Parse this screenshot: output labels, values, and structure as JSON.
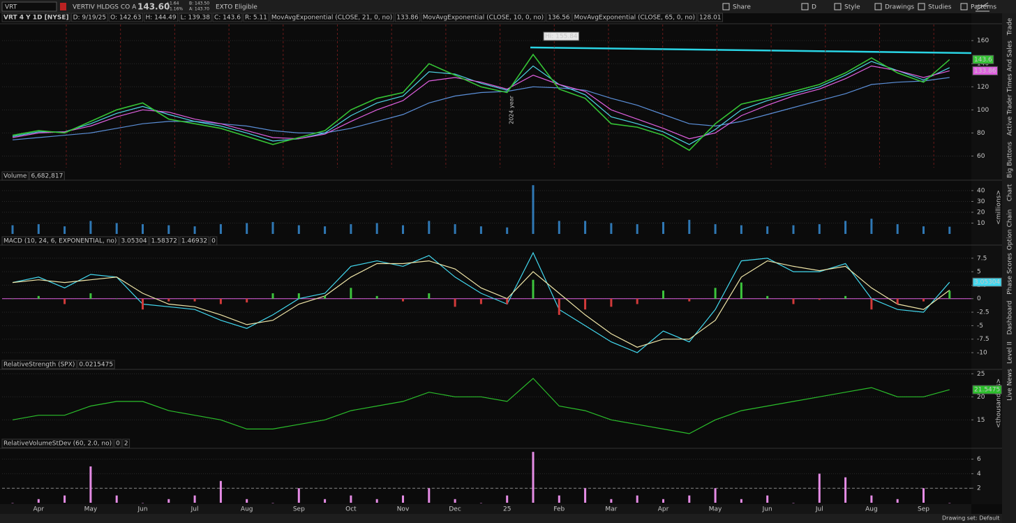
{
  "toolbar": {
    "symbol": "VRT",
    "company": "VERTIV HLDGS CO A",
    "last": "143.60",
    "change": "+1.64",
    "change_pct": "+1.16%",
    "bid": "B: 143.50",
    "ask": "A: 143.70",
    "badge": "EXTO Eligible",
    "buttons": [
      "Share",
      "D",
      "Style",
      "Drawings",
      "Studies",
      "Patterns"
    ]
  },
  "side_tabs": [
    "Trade",
    "Times And Sales",
    "Active Trader",
    "Big Buttons",
    "Chart",
    "Option Chain",
    "Phase Scores",
    "Dashboard",
    "Level II",
    "Live News"
  ],
  "status": "Drawing set: Default",
  "chart_data": [
    {
      "type": "line",
      "readouts": [
        "D: 9/19/25",
        "O: 142.63",
        "H: 144.49",
        "L: 139.38",
        "C: 143.6",
        "R: 5.11"
      ],
      "annotation": "Hi: 155.84",
      "year_label": "2024 year",
      "grid": true,
      "categories": [
        null,
        "Apr",
        null,
        "May",
        null,
        "Jun",
        null,
        "Jul",
        null,
        "Aug",
        null,
        "Sep",
        null,
        "Oct",
        null,
        "Nov",
        null,
        "Dec",
        null,
        "25",
        null,
        "Feb",
        null,
        "Mar",
        null,
        "Apr",
        null,
        "May",
        null,
        "Jun",
        null,
        "Jul",
        null,
        "Aug",
        null,
        "Sep",
        null
      ],
      "ylim": [
        50,
        174
      ],
      "yticks": [
        60,
        80,
        100,
        120,
        140,
        160
      ],
      "series": [
        {
          "name": "VRT 4 Y 1D [NYSE]",
          "color": "#35c435",
          "badge": true,
          "values": [
            78,
            82,
            80,
            90,
            100,
            106,
            92,
            88,
            84,
            77,
            70,
            76,
            82,
            100,
            110,
            115,
            140,
            130,
            120,
            115,
            148,
            118,
            110,
            88,
            85,
            78,
            65,
            88,
            105,
            110,
            116,
            122,
            132,
            145,
            132,
            124,
            143.6
          ]
        },
        {
          "name": "MovAvgExponential (CLOSE, 21, 0, no)",
          "color": "#e060e0",
          "badge": true,
          "values": [
            76,
            80,
            81,
            86,
            94,
            100,
            98,
            92,
            88,
            82,
            76,
            75,
            79,
            90,
            100,
            108,
            125,
            128,
            124,
            118,
            130,
            122,
            116,
            100,
            92,
            84,
            75,
            80,
            95,
            104,
            112,
            118,
            127,
            138,
            134,
            128,
            133.86
          ]
        },
        {
          "name": "MovAvgExponential (CLOSE, 10, 0, no)",
          "color": "#4fd6e6",
          "badge": false,
          "values": [
            77,
            81,
            81,
            88,
            97,
            103,
            96,
            90,
            86,
            80,
            73,
            75,
            80,
            95,
            106,
            112,
            133,
            131,
            123,
            117,
            138,
            122,
            113,
            94,
            88,
            81,
            70,
            83,
            100,
            108,
            114,
            120,
            130,
            142,
            134,
            126,
            136.56
          ]
        },
        {
          "name": "MovAvgExponential (CLOSE, 65, 0, no)",
          "color": "#5b8fd8",
          "badge": false,
          "values": [
            74,
            76,
            78,
            80,
            84,
            88,
            90,
            90,
            88,
            86,
            82,
            80,
            80,
            84,
            90,
            96,
            106,
            112,
            115,
            116,
            120,
            119,
            117,
            110,
            104,
            96,
            88,
            86,
            90,
            96,
            102,
            108,
            114,
            122,
            124,
            125,
            128.01
          ]
        }
      ]
    },
    {
      "type": "bar",
      "title": "Volume",
      "readout": "6,682,817",
      "unit": "<millions>",
      "grid": true,
      "ylim": [
        0,
        49
      ],
      "yticks": [
        10,
        20,
        30,
        40
      ],
      "series": [
        {
          "color": "#2f78b5",
          "values": [
            8,
            9,
            7,
            12,
            10,
            9,
            8,
            7,
            9,
            10,
            11,
            8,
            7,
            9,
            10,
            8,
            12,
            9,
            7,
            6,
            45,
            12,
            12,
            10,
            9,
            11,
            13,
            9,
            8,
            7,
            8,
            9,
            12,
            14,
            9,
            7,
            6.682817
          ]
        }
      ]
    },
    {
      "type": "macd",
      "title": "MACD (10, 24, 6, EXPONENTIAL, no)",
      "zero_line": 0,
      "grid": true,
      "ylim": [
        -10.9,
        9.8
      ],
      "yticks": [
        -10,
        -7.5,
        -5,
        -2.5,
        0,
        2.5,
        5,
        7.5
      ],
      "series": [
        {
          "color": "#42d9f0",
          "badge": true,
          "values": [
            3,
            4,
            2,
            4.5,
            4,
            -1,
            -1.5,
            -2,
            -4,
            -5.5,
            -3,
            0,
            1,
            6,
            7,
            6,
            8,
            4,
            1,
            -1,
            8.5,
            -2,
            -5,
            -8,
            -10,
            -6,
            -8,
            -2,
            7,
            7.5,
            5,
            5,
            6.5,
            0,
            -2,
            -2.5,
            3.05304
          ]
        },
        {
          "color": "#f0e6a8",
          "badge": false,
          "values": [
            3,
            3.5,
            3,
            3.5,
            4,
            1,
            -1,
            -1.5,
            -3,
            -4.8,
            -4,
            -1,
            0.5,
            4,
            6.5,
            6.5,
            7,
            5.5,
            2,
            0,
            5,
            1,
            -3,
            -6.5,
            -9,
            -7.5,
            -7.5,
            -4,
            4,
            7,
            6,
            5.2,
            6,
            2,
            -1,
            -2,
            1.58372
          ]
        },
        {
          "color": "#3cc43c",
          "negative_color": "#d23a3a",
          "badge": false,
          "histogram": true,
          "values": [
            0,
            0.5,
            -1,
            1,
            0,
            -2,
            -0.5,
            -0.5,
            -1,
            -0.7,
            1,
            1,
            0.5,
            2,
            0.5,
            -0.5,
            1,
            -1.5,
            -1,
            -1,
            3.5,
            -3,
            -2,
            -1.5,
            -1,
            1.5,
            -0.5,
            2,
            3,
            0.5,
            -1,
            -0.2,
            0.5,
            -2,
            -1,
            -0.5,
            1.46932
          ]
        }
      ]
    },
    {
      "type": "line",
      "title": "RelativeStrength (SPX)",
      "readout": "0.0215475",
      "unit": "<thousandths>",
      "grid": true,
      "ylim": [
        11.4,
        25.8
      ],
      "yticks": [
        15,
        20,
        25
      ],
      "series": [
        {
          "color": "#2bbf2b",
          "badge": true,
          "values": [
            15,
            16,
            16,
            18,
            19,
            19,
            17,
            16,
            15,
            13,
            13,
            14,
            15,
            17,
            18,
            19,
            21,
            20,
            20,
            19,
            24,
            18,
            17,
            15,
            14,
            13,
            12,
            15,
            17,
            18,
            19,
            20,
            21,
            22,
            20,
            20,
            21.5475
          ]
        }
      ]
    },
    {
      "type": "bar",
      "title": "RelativeVolumeStDev (60, 2.0, no)",
      "threshold": 2,
      "grid": true,
      "ylim": [
        0,
        7.4
      ],
      "yticks": [
        2,
        4,
        6
      ],
      "series": [
        {
          "color": "#e58ce5",
          "values": [
            0,
            0.5,
            1,
            5,
            1,
            0,
            0.5,
            1,
            3,
            0.5,
            0,
            2,
            0.5,
            1,
            0.5,
            1,
            2,
            0.5,
            0,
            1,
            7,
            1,
            2,
            0.5,
            1,
            0.5,
            1,
            2,
            0.5,
            1,
            0,
            4,
            3.5,
            1,
            0.5,
            2,
            0
          ]
        }
      ]
    }
  ]
}
